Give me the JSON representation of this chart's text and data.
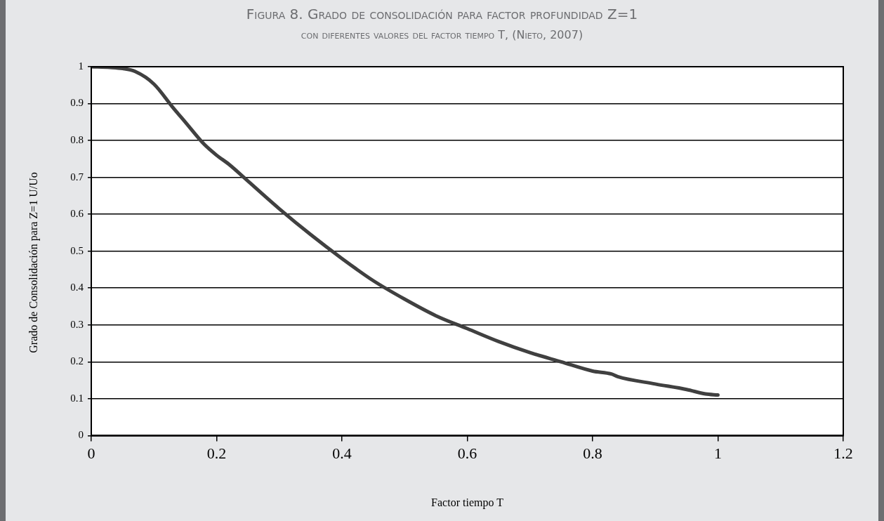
{
  "chart_data": {
    "type": "line",
    "title": "Figura 8. Grado de consolidación para factor profundidad Z=1",
    "subtitle": "con diferentes valores del factor tiempo T, (Nieto, 2007)",
    "xlabel": "Factor tiempo T",
    "ylabel": "Grado de Consolidación para Z=1  U/Uo",
    "x": [
      0,
      0.03,
      0.05,
      0.07,
      0.1,
      0.13,
      0.15,
      0.18,
      0.2,
      0.22,
      0.25,
      0.3,
      0.35,
      0.4,
      0.45,
      0.5,
      0.55,
      0.6,
      0.65,
      0.7,
      0.75,
      0.8,
      0.83,
      0.84,
      0.9,
      0.95,
      0.98,
      1.0
    ],
    "series": [
      {
        "color": "#404040",
        "values": [
          1.0,
          0.998,
          0.995,
          0.987,
          0.953,
          0.89,
          0.85,
          0.79,
          0.76,
          0.735,
          0.69,
          0.615,
          0.545,
          0.48,
          0.42,
          0.37,
          0.325,
          0.29,
          0.255,
          0.225,
          0.2,
          0.175,
          0.167,
          0.16,
          0.14,
          0.125,
          0.113,
          0.11
        ]
      }
    ],
    "xlim": [
      0,
      1.2
    ],
    "xticks": [
      0,
      0.2,
      0.4,
      0.6,
      0.8,
      1,
      1.2
    ],
    "ylim": [
      0,
      1
    ],
    "yticks": [
      0,
      0.1,
      0.2,
      0.3,
      0.4,
      0.5,
      0.6,
      0.7,
      0.8,
      0.9,
      1
    ],
    "grid": "y",
    "legend": false,
    "marker": "none",
    "line_style": "solid"
  }
}
